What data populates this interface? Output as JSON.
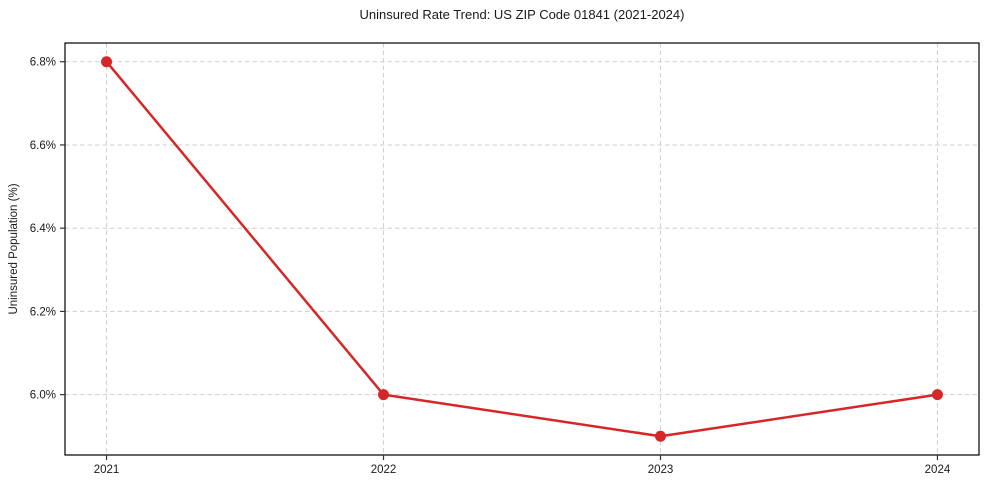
{
  "chart_data": {
    "type": "line",
    "title": "Uninsured Rate Trend: US ZIP Code 01841 (2021-2024)",
    "xlabel": "",
    "ylabel": "Uninsured Population (%)",
    "x": [
      2021,
      2022,
      2023,
      2024
    ],
    "x_tick_labels": [
      "2021",
      "2022",
      "2023",
      "2024"
    ],
    "values": [
      6.8,
      6.0,
      5.9,
      6.0
    ],
    "y_ticks": [
      6.0,
      6.2,
      6.4,
      6.6,
      6.8
    ],
    "y_tick_labels": [
      "6.0%",
      "6.2%",
      "6.4%",
      "6.6%",
      "6.8%"
    ],
    "xlim": [
      2020.85,
      2024.15
    ],
    "ylim": [
      5.855,
      6.845
    ],
    "grid": true,
    "grid_style": "dashed",
    "legend": "none",
    "colors": {
      "line": "#d62728",
      "marker": "#d62728",
      "grid": "#cfcfcf",
      "frame": "#000000",
      "tick": "#333333",
      "text": "#1a1a1a"
    }
  }
}
